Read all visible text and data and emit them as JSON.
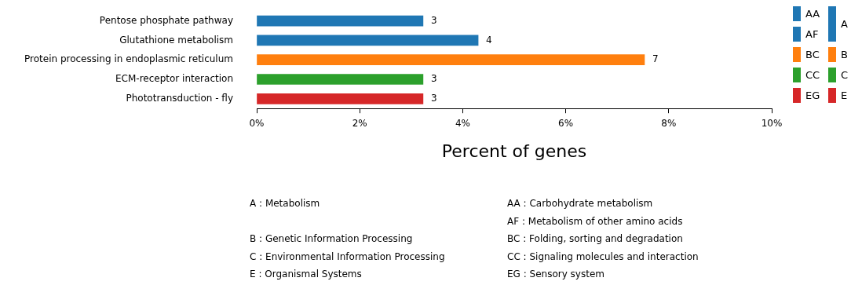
{
  "chart_data": {
    "type": "bar",
    "orientation": "horizontal",
    "categories": [
      "Pentose phosphate pathway",
      "Glutathione metabolism",
      "Protein processing in endoplasmic reticulum",
      "ECM-receptor interaction",
      "Phototransduction - fly"
    ],
    "series": [
      {
        "name": "AA",
        "color": "#1f77b4",
        "values": [
          3.23,
          null,
          null,
          null,
          null
        ]
      },
      {
        "name": "AF",
        "color": "#1f77b4",
        "values": [
          null,
          4.3,
          null,
          null,
          null
        ]
      },
      {
        "name": "BC",
        "color": "#ff7f0e",
        "values": [
          null,
          null,
          7.53,
          null,
          null
        ]
      },
      {
        "name": "CC",
        "color": "#2ca02c",
        "values": [
          null,
          null,
          null,
          3.23,
          null
        ]
      },
      {
        "name": "EG",
        "color": "#d62728",
        "values": [
          null,
          null,
          null,
          null,
          3.23
        ]
      }
    ],
    "xlim": [
      0,
      10
    ],
    "xticks": [
      {
        "value": 0,
        "label": "0%"
      },
      {
        "value": 2,
        "label": "2%"
      },
      {
        "value": 4,
        "label": "4%"
      },
      {
        "value": 6,
        "label": "6%"
      },
      {
        "value": 8,
        "label": "8%"
      },
      {
        "value": 10,
        "label": "10%"
      }
    ],
    "xlabel": "Percent of genes",
    "grid": false,
    "legend": "top right",
    "annotations": [
      "A",
      "B",
      "C",
      "E",
      "A : Metabolism",
      "AA : Carbohydrate metabolism",
      "AF : Metabolism of other amino acids",
      "B : Genetic Information Processing",
      "BC : Folding, sorting and degradation",
      "C : Environmental Information Processing",
      "CC : Signaling molecules and interaction",
      "E : Organismal Systems",
      "EG : Sensory system",
      {
        "text": "3",
        "x": 3.23,
        "y": "Pentose phosphate pathway"
      },
      {
        "text": "4",
        "x": 4.3,
        "y": "Glutathione metabolism"
      },
      {
        "text": "7",
        "x": 7.53,
        "y": "Protein processing in endoplasmic reticulum"
      },
      {
        "text": "3",
        "x": 3.23,
        "y": "ECM-receptor interaction"
      },
      {
        "text": "3",
        "x": 3.23,
        "y": "Phototransduction - fly"
      }
    ]
  }
}
